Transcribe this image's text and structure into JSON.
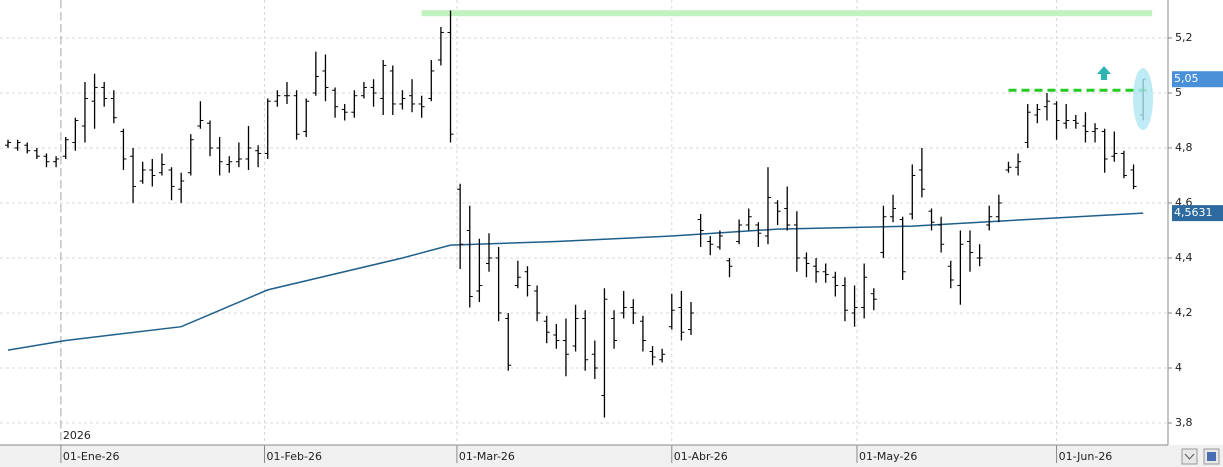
{
  "chart_data": {
    "type": "ohlc",
    "color": "#000000",
    "grid": true,
    "x": [
      "2025-12-22",
      "2025-12-23",
      "2025-12-24",
      "2025-12-29",
      "2025-12-30",
      "2025-12-31",
      "2026-01-02",
      "2026-01-05",
      "2026-01-06",
      "2026-01-07",
      "2026-01-08",
      "2026-01-09",
      "2026-01-12",
      "2026-01-13",
      "2026-01-14",
      "2026-01-15",
      "2026-01-16",
      "2026-01-19",
      "2026-01-20",
      "2026-01-21",
      "2026-01-22",
      "2026-01-23",
      "2026-01-26",
      "2026-01-27",
      "2026-01-28",
      "2026-01-29",
      "2026-01-30",
      "2026-02-02",
      "2026-02-03",
      "2026-02-04",
      "2026-02-05",
      "2026-02-06",
      "2026-02-09",
      "2026-02-10",
      "2026-02-11",
      "2026-02-12",
      "2026-02-13",
      "2026-02-16",
      "2026-02-17",
      "2026-02-18",
      "2026-02-19",
      "2026-02-20",
      "2026-02-23",
      "2026-02-24",
      "2026-02-25",
      "2026-02-26",
      "2026-02-27",
      "2026-03-02",
      "2026-03-03",
      "2026-03-04",
      "2026-03-05",
      "2026-03-06",
      "2026-03-09",
      "2026-03-10",
      "2026-03-11",
      "2026-03-12",
      "2026-03-13",
      "2026-03-16",
      "2026-03-17",
      "2026-03-18",
      "2026-03-19",
      "2026-03-20",
      "2026-03-23",
      "2026-03-24",
      "2026-03-25",
      "2026-03-26",
      "2026-03-27",
      "2026-03-30",
      "2026-03-31",
      "2026-04-01",
      "2026-04-02",
      "2026-04-07",
      "2026-04-08",
      "2026-04-09",
      "2026-04-10",
      "2026-04-13",
      "2026-04-14",
      "2026-04-15",
      "2026-04-16",
      "2026-04-17",
      "2026-04-20",
      "2026-04-21",
      "2026-04-22",
      "2026-04-23",
      "2026-04-24",
      "2026-04-27",
      "2026-04-28",
      "2026-04-29",
      "2026-04-30",
      "2026-05-04",
      "2026-05-05",
      "2026-05-06",
      "2026-05-07",
      "2026-05-08",
      "2026-05-11",
      "2026-05-12",
      "2026-05-13",
      "2026-05-14",
      "2026-05-15",
      "2026-05-18",
      "2026-05-19",
      "2026-05-20",
      "2026-05-21",
      "2026-05-22",
      "2026-05-25",
      "2026-05-26",
      "2026-05-27",
      "2026-05-28",
      "2026-05-29",
      "2026-06-01",
      "2026-06-02",
      "2026-06-03",
      "2026-06-04",
      "2026-06-05",
      "2026-06-08",
      "2026-06-09",
      "2026-06-10",
      "2026-06-11",
      "2026-06-12"
    ],
    "high": [
      4.83,
      4.83,
      4.82,
      4.8,
      4.78,
      4.77,
      4.84,
      4.91,
      5.04,
      5.07,
      5.04,
      5.01,
      4.87,
      4.8,
      4.75,
      4.76,
      4.78,
      4.73,
      4.71,
      4.85,
      4.97,
      4.9,
      4.84,
      4.77,
      4.82,
      4.88,
      4.81,
      4.98,
      5.01,
      5.04,
      5.01,
      4.98,
      5.15,
      5.14,
      5.02,
      4.96,
      5.01,
      5.04,
      5.05,
      5.12,
      5.1,
      5.01,
      5.05,
      4.99,
      5.12,
      5.24,
      5.3,
      4.67,
      4.59,
      4.47,
      4.49,
      4.44,
      4.2,
      4.39,
      4.37,
      4.3,
      4.19,
      4.16,
      4.18,
      4.23,
      4.21,
      4.1,
      4.29,
      4.21,
      4.28,
      4.25,
      4.19,
      4.08,
      4.07,
      4.27,
      4.28,
      4.24,
      4.56,
      4.48,
      4.5,
      4.4,
      4.54,
      4.58,
      4.53,
      4.73,
      4.61,
      4.66,
      4.57,
      4.42,
      4.4,
      4.38,
      4.35,
      4.33,
      4.3,
      4.38,
      4.29,
      4.59,
      4.63,
      4.55,
      4.74,
      4.8,
      4.58,
      4.55,
      4.39,
      4.5,
      4.5,
      4.45,
      4.59,
      4.63,
      4.75,
      4.78,
      4.96,
      4.96,
      5.0,
      4.97,
      4.96,
      4.92,
      4.93,
      4.89,
      4.87,
      4.86,
      4.79,
      4.74,
      5.05
    ],
    "low": [
      4.8,
      4.79,
      4.78,
      4.76,
      4.73,
      4.73,
      4.76,
      4.79,
      4.82,
      4.87,
      4.95,
      4.89,
      4.72,
      4.6,
      4.67,
      4.66,
      4.7,
      4.61,
      4.6,
      4.7,
      4.87,
      4.77,
      4.7,
      4.71,
      4.73,
      4.72,
      4.73,
      4.76,
      4.95,
      4.96,
      4.83,
      4.84,
      4.99,
      4.97,
      4.91,
      4.9,
      4.91,
      4.98,
      4.95,
      4.92,
      4.92,
      4.94,
      4.93,
      4.91,
      4.97,
      5.1,
      4.82,
      4.36,
      4.22,
      4.24,
      4.35,
      4.17,
      3.99,
      4.29,
      4.26,
      4.17,
      4.09,
      4.07,
      3.97,
      4.06,
      3.99,
      3.96,
      3.82,
      4.07,
      4.18,
      4.16,
      4.06,
      4.01,
      4.02,
      4.14,
      4.1,
      4.12,
      4.44,
      4.41,
      4.43,
      4.33,
      4.45,
      4.5,
      4.44,
      4.45,
      4.52,
      4.5,
      4.35,
      4.33,
      4.31,
      4.31,
      4.26,
      4.17,
      4.15,
      4.18,
      4.21,
      4.4,
      4.53,
      4.32,
      4.54,
      4.62,
      4.5,
      4.42,
      4.29,
      4.23,
      4.35,
      4.37,
      4.5,
      4.53,
      4.71,
      4.7,
      4.8,
      4.89,
      4.9,
      4.83,
      4.87,
      4.87,
      4.82,
      4.82,
      4.71,
      4.75,
      4.69,
      4.65,
      4.9
    ],
    "open": [
      4.81,
      4.8,
      4.81,
      4.79,
      4.77,
      4.75,
      4.77,
      4.82,
      4.88,
      4.97,
      5.02,
      4.98,
      4.86,
      4.77,
      4.68,
      4.72,
      4.71,
      4.72,
      4.65,
      4.71,
      4.88,
      4.89,
      4.8,
      4.74,
      4.75,
      4.76,
      4.79,
      4.78,
      4.97,
      4.99,
      4.99,
      4.86,
      5.0,
      5.08,
      5.01,
      4.94,
      4.93,
      4.99,
      5.02,
      4.98,
      5.08,
      4.96,
      4.99,
      4.96,
      4.98,
      5.12,
      5.22,
      4.65,
      4.5,
      4.28,
      4.38,
      4.4,
      4.18,
      4.3,
      4.35,
      4.28,
      4.17,
      4.12,
      4.1,
      4.08,
      4.18,
      4.05,
      3.9,
      4.18,
      4.2,
      4.22,
      4.17,
      4.06,
      4.03,
      4.15,
      4.22,
      4.14,
      4.54,
      4.46,
      4.44,
      4.39,
      4.46,
      4.52,
      4.52,
      4.48,
      4.6,
      4.58,
      4.52,
      4.4,
      4.37,
      4.35,
      4.33,
      4.3,
      4.2,
      4.22,
      4.27,
      4.42,
      4.55,
      4.54,
      4.56,
      4.72,
      4.57,
      4.52,
      4.37,
      4.3,
      4.46,
      4.4,
      4.52,
      4.55,
      4.72,
      4.73,
      4.82,
      4.92,
      4.95,
      4.96,
      4.89,
      4.9,
      4.88,
      4.86,
      4.86,
      4.77,
      4.78,
      4.72,
      4.92
    ],
    "close": [
      4.82,
      4.82,
      4.79,
      4.77,
      4.75,
      4.76,
      4.83,
      4.9,
      4.98,
      5.02,
      4.98,
      4.91,
      4.76,
      4.66,
      4.72,
      4.7,
      4.74,
      4.66,
      4.68,
      4.83,
      4.9,
      4.8,
      4.75,
      4.75,
      4.76,
      4.8,
      4.78,
      4.97,
      4.99,
      4.99,
      4.85,
      4.97,
      5.06,
      5.02,
      4.95,
      4.93,
      4.99,
      5.02,
      5.0,
      5.1,
      4.96,
      4.98,
      4.96,
      4.95,
      5.08,
      5.22,
      4.85,
      4.45,
      4.26,
      4.3,
      4.4,
      4.2,
      4.01,
      4.33,
      4.3,
      4.2,
      4.13,
      4.1,
      4.05,
      4.18,
      4.03,
      4.0,
      4.25,
      4.1,
      4.22,
      4.2,
      4.1,
      4.04,
      4.05,
      4.21,
      4.13,
      4.2,
      4.5,
      4.45,
      4.48,
      4.37,
      4.52,
      4.55,
      4.49,
      4.62,
      4.57,
      4.52,
      4.4,
      4.38,
      4.35,
      4.34,
      4.3,
      4.21,
      4.22,
      4.33,
      4.25,
      4.55,
      4.58,
      4.35,
      4.7,
      4.65,
      4.53,
      4.45,
      4.32,
      4.45,
      4.42,
      4.4,
      4.55,
      4.6,
      4.73,
      4.75,
      4.93,
      4.94,
      4.97,
      4.9,
      4.9,
      4.89,
      4.86,
      4.87,
      4.76,
      4.78,
      4.7,
      4.66,
      5.05
    ],
    "ma": {
      "color": "#1f5f8b",
      "x": [
        "2025-12-22",
        "2026-01-02",
        "2026-01-20",
        "2026-02-02",
        "2026-02-20",
        "2026-02-27",
        "2026-03-16",
        "2026-04-01",
        "2026-04-20",
        "2026-05-11",
        "2026-05-27",
        "2026-06-12"
      ],
      "values": [
        4.065,
        4.1,
        4.15,
        4.284,
        4.4,
        4.447,
        4.46,
        4.48,
        4.505,
        4.516,
        4.54,
        4.5631
      ]
    },
    "lines": [
      {
        "y": 5.29,
        "x": [
          "2026-02-24",
          "2026-06-12"
        ],
        "color": "#bff2bf",
        "style": "solid"
      },
      {
        "y": 5.01,
        "x": [
          "2026-05-25",
          "2026-06-12"
        ],
        "color": "#22cc22",
        "style": "dashed"
      }
    ],
    "last_values": [
      {
        "value": 5.05,
        "label": "5,05",
        "color": "#4a90d9"
      },
      {
        "value": 4.5631,
        "label": "4,5631",
        "color": "#2d6aa0"
      }
    ],
    "ylim": [
      3.72,
      5.338
    ],
    "yticks": [
      {
        "value": 3.8,
        "label": "3,8"
      },
      4,
      {
        "value": 4.2,
        "label": "4,2"
      },
      {
        "value": 4.4,
        "label": "4,4"
      },
      {
        "value": 4.6,
        "label": "4,6"
      },
      {
        "value": 4.8,
        "label": "4,8"
      },
      5,
      {
        "value": 5.2,
        "label": "5,2"
      }
    ],
    "xticks": [
      {
        "value": "2026-01-01",
        "label": "01-Ene-26"
      },
      {
        "value": "2026-02-01",
        "label": "01-Feb-26"
      },
      {
        "value": "2026-03-01",
        "label": "01-Mar-26"
      },
      {
        "value": "2026-04-01",
        "label": "01-Abr-26"
      },
      {
        "value": "2026-05-01",
        "label": "01-May-26"
      },
      {
        "value": "2026-06-01",
        "label": "01-Jun-26"
      }
    ],
    "year_marker": {
      "x": "2026-01-01",
      "label": "2026"
    }
  }
}
